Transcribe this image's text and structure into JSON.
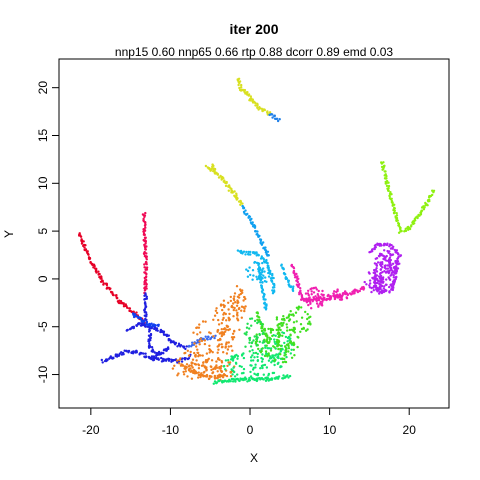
{
  "chart_data": {
    "type": "scatter",
    "title": "iter 200",
    "subtitle": "nnp15 0.60 nnp65 0.66 rtp 0.88 dcorr 0.89 emd 0.03",
    "xlabel": "X",
    "ylabel": "Y",
    "xlim": [
      -24,
      25
    ],
    "ylim": [
      -13.5,
      23
    ],
    "xticks": [
      -20,
      -10,
      0,
      10,
      20
    ],
    "yticks": [
      -10,
      -5,
      0,
      5,
      10,
      15,
      20
    ],
    "xtick_labels": [
      "-20",
      "-10",
      "0",
      "10",
      "20"
    ],
    "ytick_labels": [
      "-10",
      "-5",
      "0",
      "5",
      "10",
      "15",
      "20"
    ],
    "grid": false,
    "legend": "none",
    "series": [
      {
        "color": "#e60026",
        "segments": [
          [
            [
              -21.5,
              4.7
            ],
            [
              -20.2,
              2.2
            ],
            [
              -18.5,
              -0.3
            ],
            [
              -16.3,
              -2.4
            ],
            [
              -14.5,
              -3.6
            ],
            [
              -13.2,
              -4.7
            ]
          ]
        ]
      },
      {
        "color": "#f00a55",
        "segments": [
          [
            [
              -13.3,
              6.8
            ],
            [
              -13.2,
              4.0
            ],
            [
              -13.1,
              1.0
            ],
            [
              -13.1,
              -1.5
            ]
          ]
        ]
      },
      {
        "color": "#2020e0",
        "segments": [
          [
            [
              -13.1,
              -1.5
            ],
            [
              -13.2,
              -4.6
            ]
          ],
          [
            [
              -18.5,
              -8.6
            ],
            [
              -16.0,
              -7.7
            ],
            [
              -14.5,
              -7.6
            ],
            [
              -12.0,
              -8.4
            ],
            [
              -9.0,
              -8.6
            ],
            [
              -7.5,
              -8.1
            ]
          ],
          [
            [
              -15.5,
              -5.3
            ],
            [
              -13.8,
              -4.7
            ],
            [
              -12.5,
              -5.0
            ],
            [
              -11.0,
              -5.5
            ],
            [
              -9.5,
              -6.7
            ],
            [
              -8.0,
              -7.2
            ]
          ],
          [
            [
              -12.5,
              -5.0
            ],
            [
              -12.7,
              -7.0
            ],
            [
              -11.5,
              -8.0
            ]
          ],
          [
            [
              -10.2,
              -7.3
            ],
            [
              -11.5,
              -7.8
            ],
            [
              -12.4,
              -8.4
            ]
          ]
        ]
      },
      {
        "color": "#1040f0",
        "segments": [
          [
            [
              -14.8,
              -3.6
            ],
            [
              -13.6,
              -4.3
            ],
            [
              -12.8,
              -4.8
            ],
            [
              -11.5,
              -4.9
            ]
          ]
        ]
      },
      {
        "color": "#3a6af0",
        "segments": [
          [
            [
              -7.6,
              -7.0
            ],
            [
              -6.4,
              -6.5
            ],
            [
              -5.6,
              -6.2
            ],
            [
              -4.5,
              -6.1
            ]
          ]
        ]
      },
      {
        "color": "#f08020",
        "segments": [
          [
            [
              -8.6,
              -9.0
            ],
            [
              -7.0,
              -9.8
            ],
            [
              -5.0,
              -10.3
            ],
            [
              -3.0,
              -10.1
            ]
          ]
        ],
        "cloud": [
          [
            -7.5,
            -9.0,
            2.4,
            1.5,
            60
          ],
          [
            -5.0,
            -7.0,
            2.6,
            2.8,
            80
          ],
          [
            -3.0,
            -5.0,
            1.8,
            2.8,
            70
          ],
          [
            -1.5,
            -2.5,
            1.0,
            1.8,
            40
          ],
          [
            -3.5,
            -9.5,
            1.6,
            1.1,
            30
          ]
        ]
      },
      {
        "color": "#10e870",
        "segments": [
          [
            [
              -4.5,
              -10.8
            ],
            [
              -2.0,
              -10.6
            ],
            [
              2.0,
              -10.5
            ],
            [
              5.0,
              -10.2
            ]
          ]
        ],
        "cloud": [
          [
            0.5,
            -9.0,
            3.8,
            1.6,
            110
          ],
          [
            3.5,
            -7.0,
            2.0,
            1.5,
            50
          ]
        ]
      },
      {
        "color": "#40e020",
        "segments": [
          [
            [
              0.8,
              -3.5
            ],
            [
              1.5,
              -5.0
            ],
            [
              2.4,
              -6.8
            ]
          ],
          [
            [
              4.2,
              -4.0
            ],
            [
              3.6,
              -5.6
            ],
            [
              3.5,
              -7.2
            ]
          ]
        ],
        "cloud": [
          [
            3.5,
            -6.5,
            2.8,
            2.5,
            90
          ],
          [
            6.0,
            -4.3,
            1.7,
            1.5,
            40
          ]
        ]
      },
      {
        "color": "#20e050",
        "cloud": [
          [
            0.5,
            -6.0,
            1.4,
            2.0,
            40
          ]
        ]
      },
      {
        "color": "#10b8f0",
        "segments": [
          [
            [
              -1.5,
              2.8
            ],
            [
              0.8,
              2.6
            ],
            [
              2.0,
              1.8
            ],
            [
              2.8,
              0.2
            ],
            [
              3.0,
              -1.5
            ]
          ],
          [
            [
              1.2,
              1.6
            ],
            [
              1.3,
              0.0
            ],
            [
              1.8,
              -2.0
            ],
            [
              2.0,
              -3.2
            ]
          ],
          [
            [
              4.0,
              1.5
            ],
            [
              4.5,
              0.0
            ],
            [
              5.5,
              -1.2
            ]
          ]
        ],
        "cloud": [
          [
            1.0,
            0.6,
            1.6,
            1.2,
            40
          ]
        ]
      },
      {
        "color": "#10a0f0",
        "segments": [
          [
            [
              -1.0,
              7.6
            ],
            [
              0.5,
              5.5
            ],
            [
              1.5,
              3.8
            ],
            [
              2.4,
              2.3
            ]
          ]
        ]
      },
      {
        "color": "#f020b0",
        "segments": [
          [
            [
              5.2,
              1.4
            ],
            [
              5.8,
              0.3
            ],
            [
              6.3,
              -1.5
            ],
            [
              7.0,
              -2.3
            ],
            [
              10.0,
              -2.0
            ],
            [
              13.0,
              -1.4
            ],
            [
              14.5,
              -0.9
            ]
          ]
        ],
        "cloud": [
          [
            8.0,
            -2.0,
            1.6,
            1.1,
            50
          ],
          [
            11.0,
            -1.7,
            1.4,
            0.6,
            30
          ]
        ]
      },
      {
        "color": "#b020f0",
        "segments": [
          [
            [
              15.0,
              2.8
            ],
            [
              16.0,
              3.6
            ],
            [
              17.5,
              3.5
            ],
            [
              18.8,
              2.5
            ],
            [
              18.4,
              1.0
            ],
            [
              17.8,
              -1.2
            ],
            [
              16.2,
              -1.4
            ],
            [
              15.5,
              0.0
            ]
          ]
        ],
        "cloud": [
          [
            17.0,
            1.0,
            1.7,
            2.0,
            150
          ],
          [
            15.6,
            -0.3,
            1.2,
            1.2,
            40
          ]
        ]
      },
      {
        "color": "#8ef010",
        "segments": [
          [
            [
              16.6,
              12.3
            ],
            [
              17.2,
              10.0
            ],
            [
              18.1,
              7.4
            ],
            [
              18.9,
              5.0
            ],
            [
              20.0,
              5.3
            ],
            [
              21.4,
              6.8
            ],
            [
              22.5,
              8.3
            ],
            [
              23.0,
              9.2
            ]
          ]
        ]
      },
      {
        "color": "#d8e020",
        "segments": [
          [
            [
              -1.4,
              21.0
            ],
            [
              -1.2,
              19.8
            ],
            [
              -0.5,
              19.5
            ],
            [
              0.3,
              18.6
            ],
            [
              1.3,
              17.8
            ],
            [
              2.5,
              17.2
            ]
          ],
          [
            [
              -5.4,
              11.8
            ],
            [
              -4.5,
              11.2
            ],
            [
              -3.3,
              10.4
            ],
            [
              -2.5,
              9.4
            ],
            [
              -1.7,
              8.6
            ],
            [
              -1.0,
              7.8
            ]
          ],
          [
            [
              -4.7,
              11.9
            ],
            [
              -4.4,
              11.0
            ]
          ]
        ]
      },
      {
        "color": "#2080e8",
        "segments": [
          [
            [
              2.5,
              17.2
            ],
            [
              3.7,
              16.6
            ]
          ]
        ]
      }
    ]
  }
}
